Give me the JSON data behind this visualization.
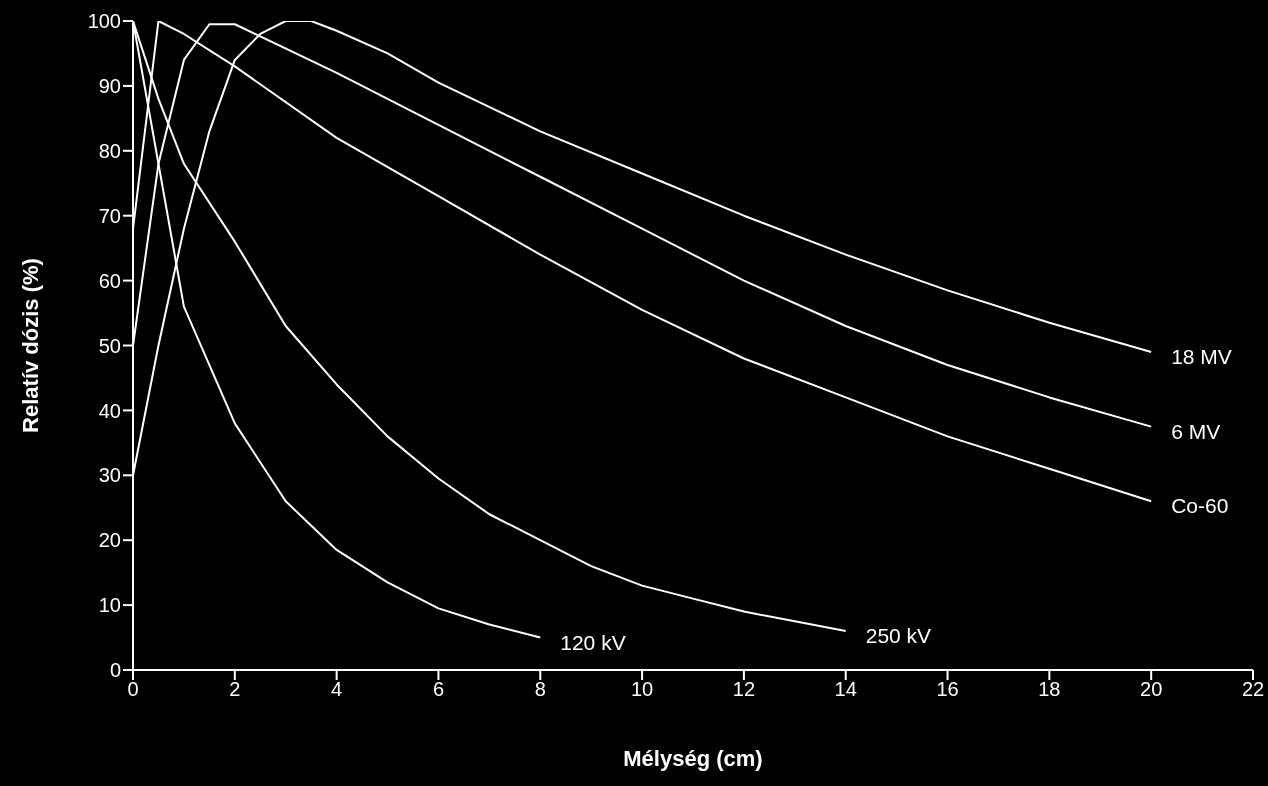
{
  "chart_data": {
    "type": "line",
    "xlabel": "Mélység (cm)",
    "ylabel": "Relatív dózis (%)",
    "xlim": [
      0,
      22
    ],
    "xticks": [
      0,
      2,
      4,
      6,
      8,
      10,
      12,
      14,
      16,
      18,
      20,
      22
    ],
    "ylim": [
      0,
      100
    ],
    "yticks": [
      0,
      10,
      20,
      30,
      40,
      50,
      60,
      70,
      80,
      90,
      100
    ],
    "marker": "none",
    "line_style": "solid",
    "series": [
      {
        "name": "18 MV",
        "color": "#ffffff",
        "x": [
          0,
          0.5,
          1,
          1.5,
          2,
          2.5,
          3,
          3.5,
          4,
          5,
          6,
          8,
          10,
          12,
          14,
          16,
          18,
          20
        ],
        "values": [
          30,
          50,
          68,
          83,
          94,
          98,
          100,
          100,
          98.5,
          95,
          90.5,
          83,
          76.5,
          70,
          64,
          58.5,
          53.5,
          49
        ]
      },
      {
        "name": "6 MV",
        "color": "#ffffff",
        "x": [
          0,
          0.5,
          1,
          1.5,
          2,
          4,
          6,
          8,
          10,
          12,
          14,
          16,
          18,
          20
        ],
        "values": [
          50,
          78,
          94,
          99.5,
          99.5,
          92,
          84,
          76,
          68,
          60,
          53,
          47,
          42,
          37.5
        ]
      },
      {
        "name": "Co-60",
        "color": "#ffffff",
        "x": [
          0,
          0.5,
          1,
          2,
          4,
          6,
          8,
          10,
          12,
          14,
          16,
          18,
          20
        ],
        "values": [
          68,
          100,
          98,
          93,
          82,
          73,
          64,
          55.5,
          48,
          42,
          36,
          31,
          26
        ]
      },
      {
        "name": "120 kV",
        "color": "#ffffff",
        "x": [
          0,
          1,
          2,
          3,
          4,
          5,
          6,
          7,
          8
        ],
        "values": [
          100,
          56,
          38,
          26,
          18.5,
          13.5,
          9.5,
          7,
          5
        ]
      },
      {
        "name": "250 kV",
        "color": "#ffffff",
        "x": [
          0,
          0.5,
          1,
          2,
          3,
          4,
          5,
          6,
          7,
          8,
          9,
          10,
          11,
          12,
          13,
          14
        ],
        "values": [
          100,
          88,
          78,
          66,
          53,
          44,
          36,
          29.5,
          24,
          20,
          16,
          13,
          11,
          9,
          7.5,
          6
        ]
      }
    ]
  }
}
